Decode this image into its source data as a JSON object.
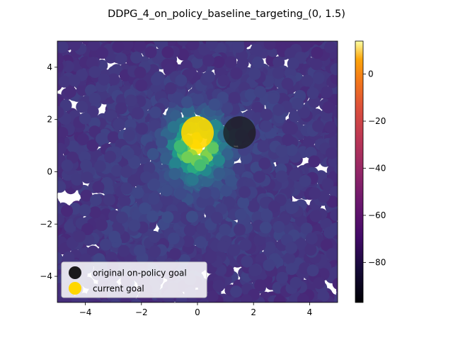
{
  "chart_data": {
    "type": "scatter",
    "title": "DDPG_4_on_policy_baseline_targeting_(0, 1.5)",
    "xlabel": "",
    "ylabel": "",
    "xlim": [
      -5,
      5
    ],
    "ylim": [
      -5,
      5
    ],
    "x_ticks": [
      -4,
      -2,
      0,
      2,
      4
    ],
    "y_ticks": [
      -4,
      -2,
      0,
      2,
      4
    ],
    "grid": false,
    "colormap": "viridis",
    "colorbar": {
      "colormap": "inferno",
      "range": [
        -97,
        14
      ],
      "ticks": [
        0,
        -20,
        -40,
        -60,
        -80
      ],
      "tick_labels": [
        "0",
        "−20",
        "−40",
        "−60",
        "−80"
      ]
    },
    "density_field": {
      "description": "reward-colored scatter field, high near (0, 1)",
      "peak": {
        "x": 0,
        "y": 1.0
      },
      "peak_value": 14,
      "background_value": -85
    },
    "markers": [
      {
        "name": "original on-policy goal",
        "x": 1.5,
        "y": 1.5,
        "color": "#1a1a1a"
      },
      {
        "name": "current goal",
        "x": 0,
        "y": 1.5,
        "color": "#ffd700"
      }
    ],
    "x_tick_labels": [
      "−4",
      "−2",
      "0",
      "2",
      "4"
    ],
    "y_tick_labels": [
      "−4",
      "−2",
      "0",
      "2",
      "4"
    ],
    "legend": {
      "placement": "lower-left",
      "entries": [
        {
          "label": "original on-policy goal",
          "color": "#1a1a1a"
        },
        {
          "label": "current goal",
          "color": "#ffd700"
        }
      ]
    }
  }
}
